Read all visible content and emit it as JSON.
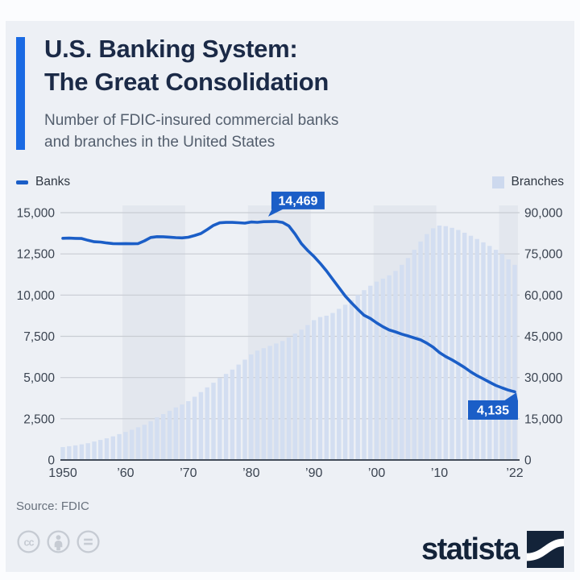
{
  "header": {
    "title_line1": "U.S. Banking System:",
    "title_line2": "The Great Consolidation",
    "subtitle_line1": "Number of FDIC-insured commercial banks",
    "subtitle_line2": "and branches in the United States"
  },
  "footer": {
    "source": "Source: FDIC",
    "brand": "statista",
    "license_icons": [
      "cc-icon",
      "attribution-person-icon",
      "equals-no-derivatives-icon"
    ]
  },
  "colors": {
    "accent_bar": "#1a6ae3",
    "line_blue": "#1b5ec7",
    "bar_blue": "#d3def1",
    "band_shade": "#e3e7ee",
    "gridline": "#c8ccd3",
    "zero_axis": "#434c59",
    "title_navy": "#1b2a47",
    "background": "#edf0f5"
  },
  "chart_data": {
    "type": "combo-line-bar",
    "title": "U.S. Banking System: The Great Consolidation",
    "subtitle": "Number of FDIC-insured commercial banks and branches in the United States",
    "start_year": 1950,
    "end_year": 2022,
    "left_axis": {
      "min": 0,
      "max": 15000,
      "tick_labels": [
        "15,000",
        "12,500",
        "10,000",
        "7,500",
        "5,000",
        "2,500",
        "0"
      ]
    },
    "right_axis": {
      "min": 0,
      "max": 90000,
      "tick_labels": [
        "90,000",
        "75,000",
        "60,000",
        "45,000",
        "30,000",
        "15,000",
        "0"
      ]
    },
    "x_tick_years": [
      1950,
      1960,
      1970,
      1980,
      1990,
      2000,
      2010,
      2022
    ],
    "x_tick_labels": [
      "1950",
      "’60",
      "’70",
      "’80",
      "’90",
      "’00",
      "’10",
      "’22"
    ],
    "shaded_decades": [
      [
        1960,
        1970
      ],
      [
        1980,
        1990
      ],
      [
        2000,
        2010
      ],
      [
        2020,
        2023
      ]
    ],
    "legend_position": "top",
    "grid": true,
    "series": [
      {
        "name": "Banks",
        "type": "line",
        "axis": "left",
        "color": "#1b5ec7",
        "values": [
          13446,
          13455,
          13439,
          13432,
          13323,
          13237,
          13218,
          13165,
          13124,
          13114,
          13126,
          13115,
          13124,
          13291,
          13493,
          13544,
          13538,
          13514,
          13487,
          13473,
          13511,
          13612,
          13733,
          13976,
          14230,
          14384,
          14410,
          14411,
          14391,
          14364,
          14434,
          14414,
          14451,
          14460,
          14469,
          14407,
          14199,
          13703,
          13123,
          12709,
          12347,
          11927,
          11466,
          10958,
          10451,
          9941,
          9528,
          9143,
          8774,
          8580,
          8315,
          8080,
          7888,
          7770,
          7631,
          7526,
          7401,
          7283,
          7086,
          6839,
          6519,
          6275,
          6072,
          5847,
          5607,
          5338,
          5112,
          4918,
          4717,
          4519,
          4375,
          4236,
          4135
        ]
      },
      {
        "name": "Branches",
        "type": "bar",
        "axis": "right",
        "color": "#d3def1",
        "values": [
          4700,
          5000,
          5300,
          5700,
          6100,
          6700,
          7300,
          7900,
          8600,
          9400,
          10200,
          11000,
          11900,
          12800,
          14100,
          15500,
          16700,
          17900,
          19100,
          20200,
          21400,
          23000,
          24700,
          26400,
          28100,
          29800,
          31300,
          32900,
          34700,
          36500,
          38400,
          39800,
          40700,
          41500,
          42400,
          43300,
          44600,
          46000,
          47400,
          49100,
          50900,
          52000,
          52500,
          53500,
          55000,
          56500,
          58200,
          60000,
          61800,
          63400,
          64900,
          66000,
          67200,
          68800,
          71000,
          73500,
          76500,
          79500,
          82200,
          84300,
          85300,
          85100,
          84500,
          83700,
          82700,
          81600,
          80400,
          79200,
          77900,
          76500,
          75000,
          73000,
          71000
        ]
      }
    ],
    "annotations": [
      {
        "series": "Banks",
        "year": 1984,
        "value": 14469,
        "label": "14,469",
        "placement": "above"
      },
      {
        "series": "Banks",
        "year": 2022,
        "value": 4135,
        "label": "4,135",
        "placement": "below"
      }
    ]
  }
}
